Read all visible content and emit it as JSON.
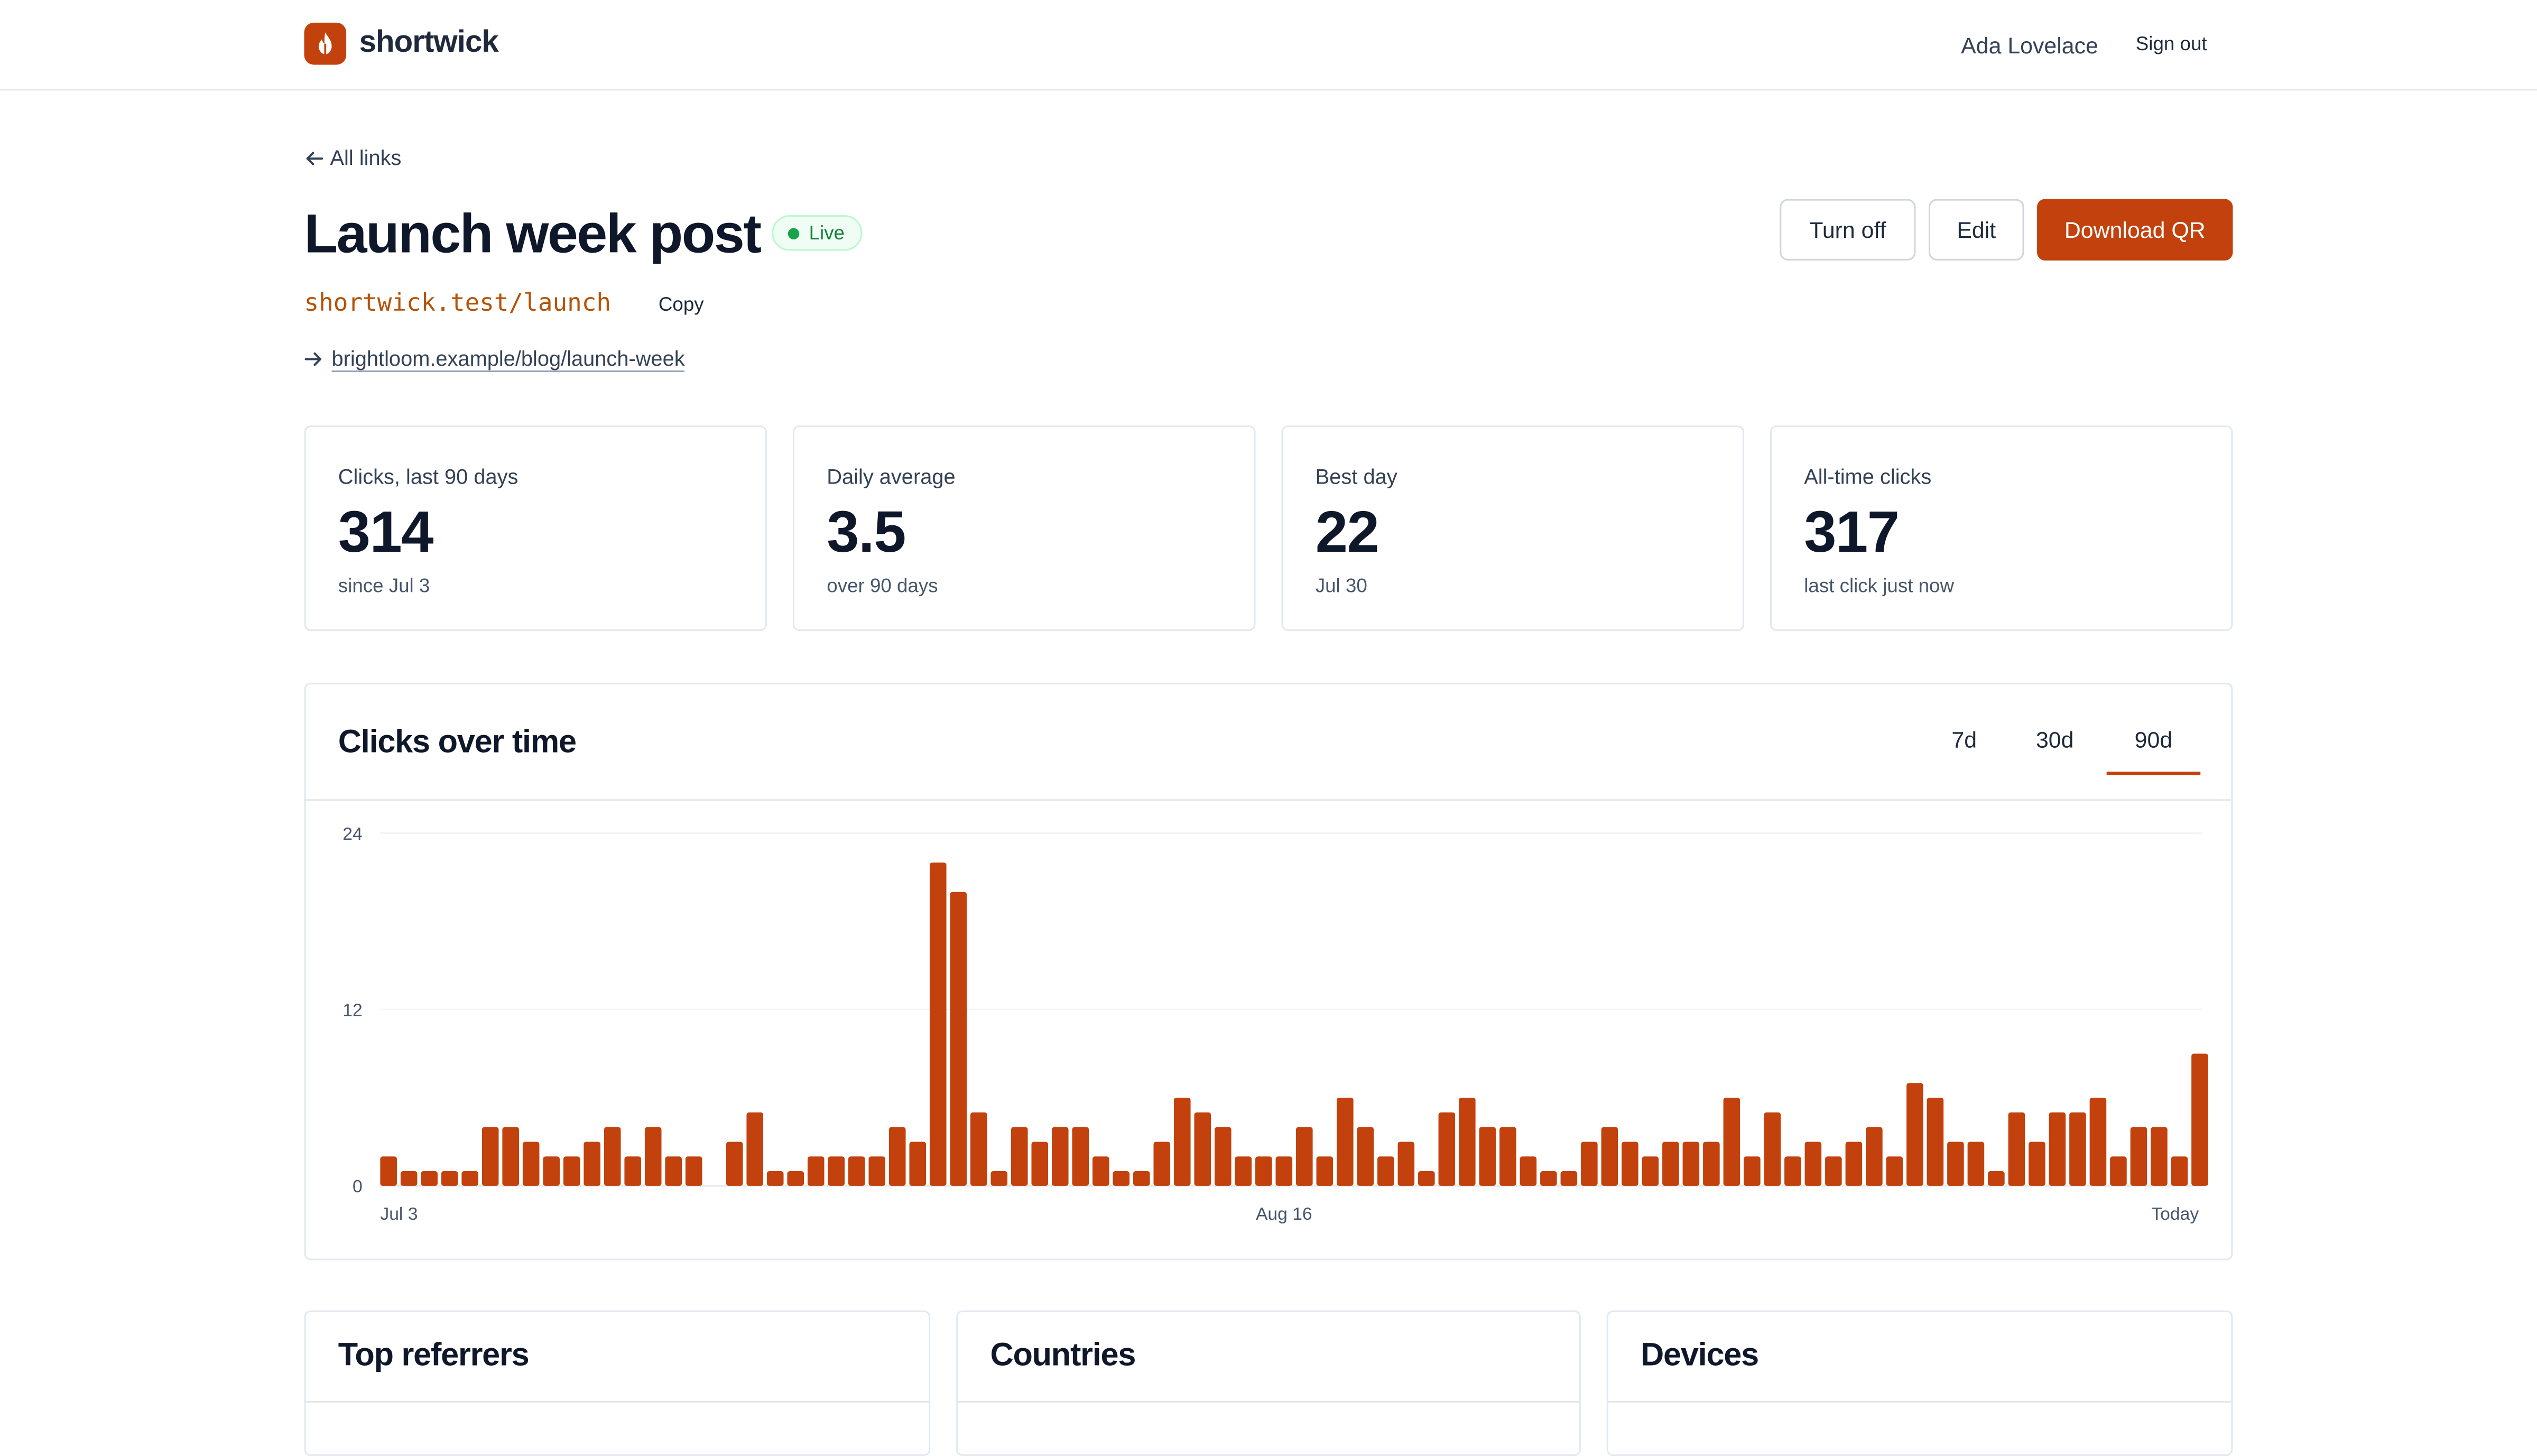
{
  "app": {
    "name": "shortwick",
    "user": "Ada Lovelace",
    "sign_out": "Sign out"
  },
  "nav": {
    "back_label": "All links"
  },
  "link": {
    "title": "Launch week post",
    "status": "Live",
    "short_url": "shortwick.test/launch",
    "copy_label": "Copy",
    "destination": "brightloom.example/blog/launch-week"
  },
  "actions": {
    "turn_off": "Turn off",
    "edit": "Edit",
    "download_qr": "Download QR"
  },
  "stats": [
    {
      "label": "Clicks, last 90 days",
      "value": "314",
      "sub": "since Jul 3"
    },
    {
      "label": "Daily average",
      "value": "3.5",
      "sub": "over 90 days"
    },
    {
      "label": "Best day",
      "value": "22",
      "sub": "Jul 30"
    },
    {
      "label": "All-time clicks",
      "value": "317",
      "sub": "last click just now"
    }
  ],
  "chart": {
    "title": "Clicks over time",
    "tabs": [
      "7d",
      "30d",
      "90d"
    ],
    "active_tab": "90d"
  },
  "chart_data": {
    "type": "bar",
    "title": "Clicks over time",
    "xlabel": "",
    "ylabel": "",
    "ylim": [
      0,
      24
    ],
    "yticks": [
      0,
      12,
      24
    ],
    "xtick_labels": [
      {
        "index": 0,
        "label": "Jul 3"
      },
      {
        "index": 44,
        "label": "Aug 16"
      },
      {
        "index": 89,
        "label": "Today"
      }
    ],
    "grid": true,
    "color": "#c2410c",
    "values": [
      2,
      1,
      1,
      1,
      1,
      4,
      4,
      3,
      2,
      2,
      3,
      4,
      2,
      4,
      2,
      2,
      0,
      3,
      5,
      1,
      1,
      2,
      2,
      2,
      2,
      4,
      3,
      22,
      20,
      5,
      1,
      4,
      3,
      4,
      4,
      2,
      1,
      1,
      3,
      6,
      5,
      4,
      2,
      2,
      2,
      4,
      2,
      6,
      4,
      2,
      3,
      1,
      5,
      6,
      4,
      4,
      2,
      1,
      1,
      3,
      4,
      3,
      2,
      3,
      3,
      3,
      6,
      2,
      5,
      2,
      3,
      2,
      3,
      4,
      2,
      7,
      6,
      3,
      3,
      1,
      5,
      3,
      5,
      5,
      6,
      2,
      4,
      4,
      2,
      9
    ]
  },
  "panels": [
    {
      "title": "Top referrers"
    },
    {
      "title": "Countries"
    },
    {
      "title": "Devices"
    }
  ],
  "colors": {
    "accent": "#c2410c",
    "live": "#16a34a",
    "text": "#0f172a",
    "border": "#e2e8f0"
  }
}
